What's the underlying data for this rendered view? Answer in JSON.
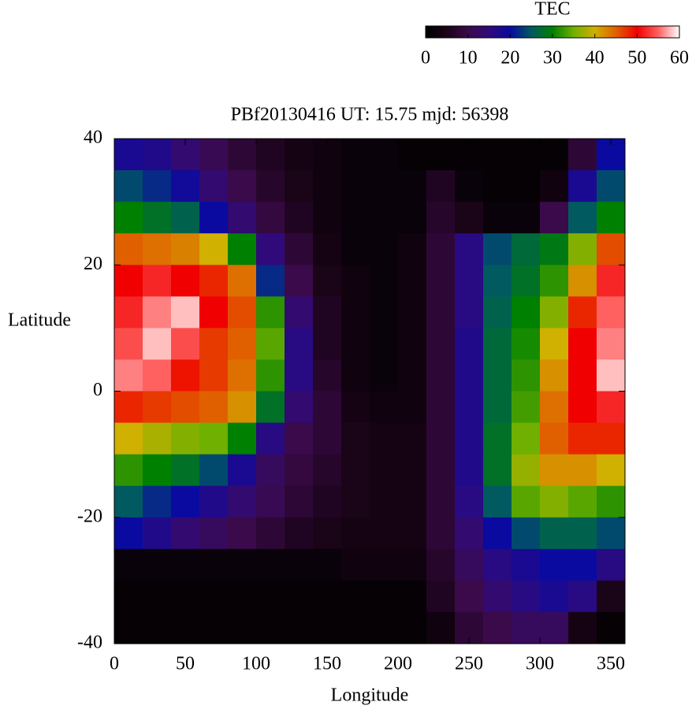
{
  "chart_data": {
    "type": "heatmap",
    "title": "PBf20130416  UT: 15.75  mjd: 56398",
    "xlabel": "Longitude",
    "ylabel": "Latitude",
    "x": [
      10,
      30,
      50,
      70,
      90,
      110,
      130,
      150,
      170,
      190,
      210,
      230,
      250,
      270,
      290,
      310,
      330,
      350
    ],
    "y": [
      37.5,
      32.5,
      27.5,
      22.5,
      17.5,
      12.5,
      7.5,
      2.5,
      -2.5,
      -7.5,
      -12.5,
      -17.5,
      -22.5,
      -27.5,
      -32.5,
      -37.5
    ],
    "z": [
      [
        18,
        17,
        14,
        11,
        8,
        6,
        4,
        3,
        2,
        2,
        1,
        1,
        1,
        1,
        1,
        1,
        8,
        20
      ],
      [
        24,
        22,
        19,
        14,
        10,
        7,
        5,
        3,
        2,
        2,
        2,
        6,
        2,
        1,
        1,
        3,
        18,
        24
      ],
      [
        30,
        28,
        26,
        20,
        14,
        9,
        6,
        3,
        2,
        2,
        2,
        7,
        5,
        2,
        2,
        10,
        25,
        30
      ],
      [
        45,
        44,
        43,
        40,
        30,
        15,
        8,
        4,
        2,
        2,
        3,
        8,
        16,
        24,
        27,
        29,
        36,
        46
      ],
      [
        50,
        52,
        50,
        48,
        44,
        22,
        10,
        5,
        3,
        2,
        3,
        8,
        16,
        25,
        28,
        32,
        42,
        52
      ],
      [
        52,
        56,
        58,
        50,
        46,
        32,
        14,
        6,
        3,
        2,
        3,
        8,
        16,
        26,
        30,
        36,
        48,
        55
      ],
      [
        54,
        58,
        54,
        47,
        45,
        34,
        16,
        6,
        3,
        2,
        3,
        8,
        17,
        27,
        31,
        40,
        50,
        56
      ],
      [
        56,
        55,
        49,
        47,
        44,
        32,
        16,
        7,
        3,
        2,
        3,
        8,
        17,
        27,
        32,
        42,
        50,
        58
      ],
      [
        48,
        47,
        46,
        45,
        42,
        28,
        14,
        8,
        4,
        3,
        3,
        8,
        17,
        27,
        33,
        44,
        50,
        52
      ],
      [
        40,
        38,
        36,
        35,
        30,
        16,
        10,
        8,
        5,
        4,
        4,
        8,
        17,
        28,
        35,
        45,
        48,
        48
      ],
      [
        32,
        30,
        28,
        24,
        18,
        12,
        9,
        7,
        5,
        4,
        4,
        8,
        17,
        28,
        37,
        42,
        42,
        40
      ],
      [
        25,
        22,
        20,
        17,
        14,
        11,
        8,
        6,
        5,
        4,
        4,
        8,
        16,
        25,
        34,
        36,
        34,
        32
      ],
      [
        20,
        17,
        14,
        12,
        10,
        8,
        6,
        5,
        4,
        4,
        4,
        8,
        14,
        20,
        24,
        26,
        26,
        24
      ],
      [
        2,
        2,
        2,
        2,
        2,
        2,
        2,
        2,
        3,
        3,
        3,
        7,
        12,
        16,
        18,
        20,
        20,
        16
      ],
      [
        1,
        1,
        1,
        1,
        1,
        1,
        1,
        1,
        1,
        1,
        1,
        6,
        10,
        14,
        16,
        18,
        16,
        5
      ],
      [
        1,
        1,
        1,
        1,
        1,
        1,
        1,
        1,
        1,
        1,
        1,
        3,
        8,
        10,
        12,
        12,
        4,
        1
      ]
    ],
    "xlim": [
      0,
      360
    ],
    "ylim": [
      -40,
      40
    ],
    "xticks": [
      0,
      50,
      100,
      150,
      200,
      250,
      300,
      350
    ],
    "yticks": [
      -40,
      -20,
      0,
      20,
      40
    ],
    "colorbar": {
      "label": "TEC",
      "clim": [
        0,
        60
      ],
      "ticks": [
        0,
        10,
        20,
        30,
        40,
        50,
        60
      ],
      "colors": [
        "#000000",
        "#1a0418",
        "#3a0a4a",
        "#300a7a",
        "#0a0aa0",
        "#005a60",
        "#008000",
        "#70b000",
        "#d0b000",
        "#e06000",
        "#f00000",
        "#ff6060",
        "#ffffff"
      ]
    }
  }
}
